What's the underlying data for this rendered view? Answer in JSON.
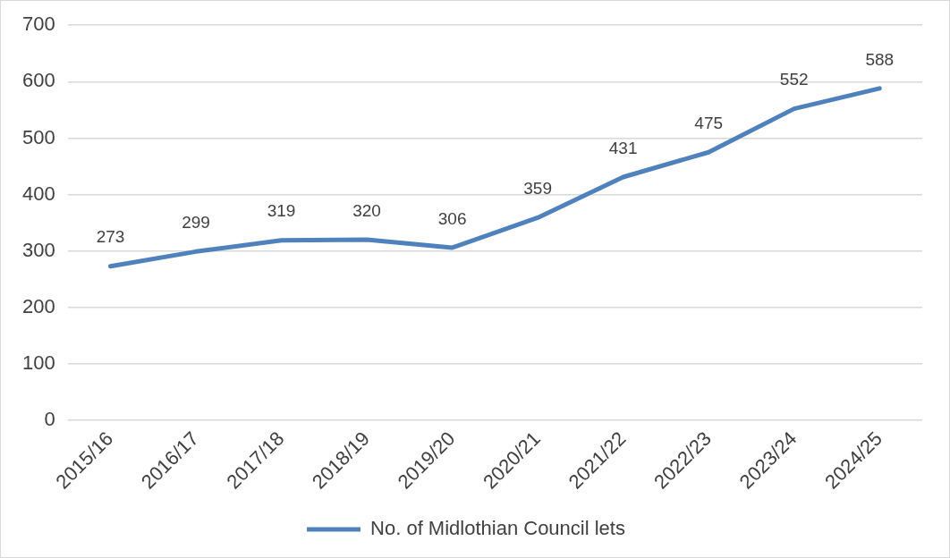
{
  "chart_data": {
    "type": "line",
    "categories": [
      "2015/16",
      "2016/17",
      "2017/18",
      "2018/19",
      "2019/20",
      "2020/21",
      "2021/22",
      "2022/23",
      "2023/24",
      "2024/25"
    ],
    "series": [
      {
        "name": "No. of Midlothian Council lets",
        "color": "#4f81bd",
        "values": [
          273,
          299,
          319,
          320,
          306,
          359,
          431,
          475,
          552,
          588
        ]
      }
    ],
    "ylim": [
      0,
      700
    ],
    "yticks": [
      0,
      100,
      200,
      300,
      400,
      500,
      600,
      700
    ],
    "grid": "y",
    "legend": "bottom",
    "marker": "none",
    "line_style": "solid",
    "data_labels": true
  }
}
